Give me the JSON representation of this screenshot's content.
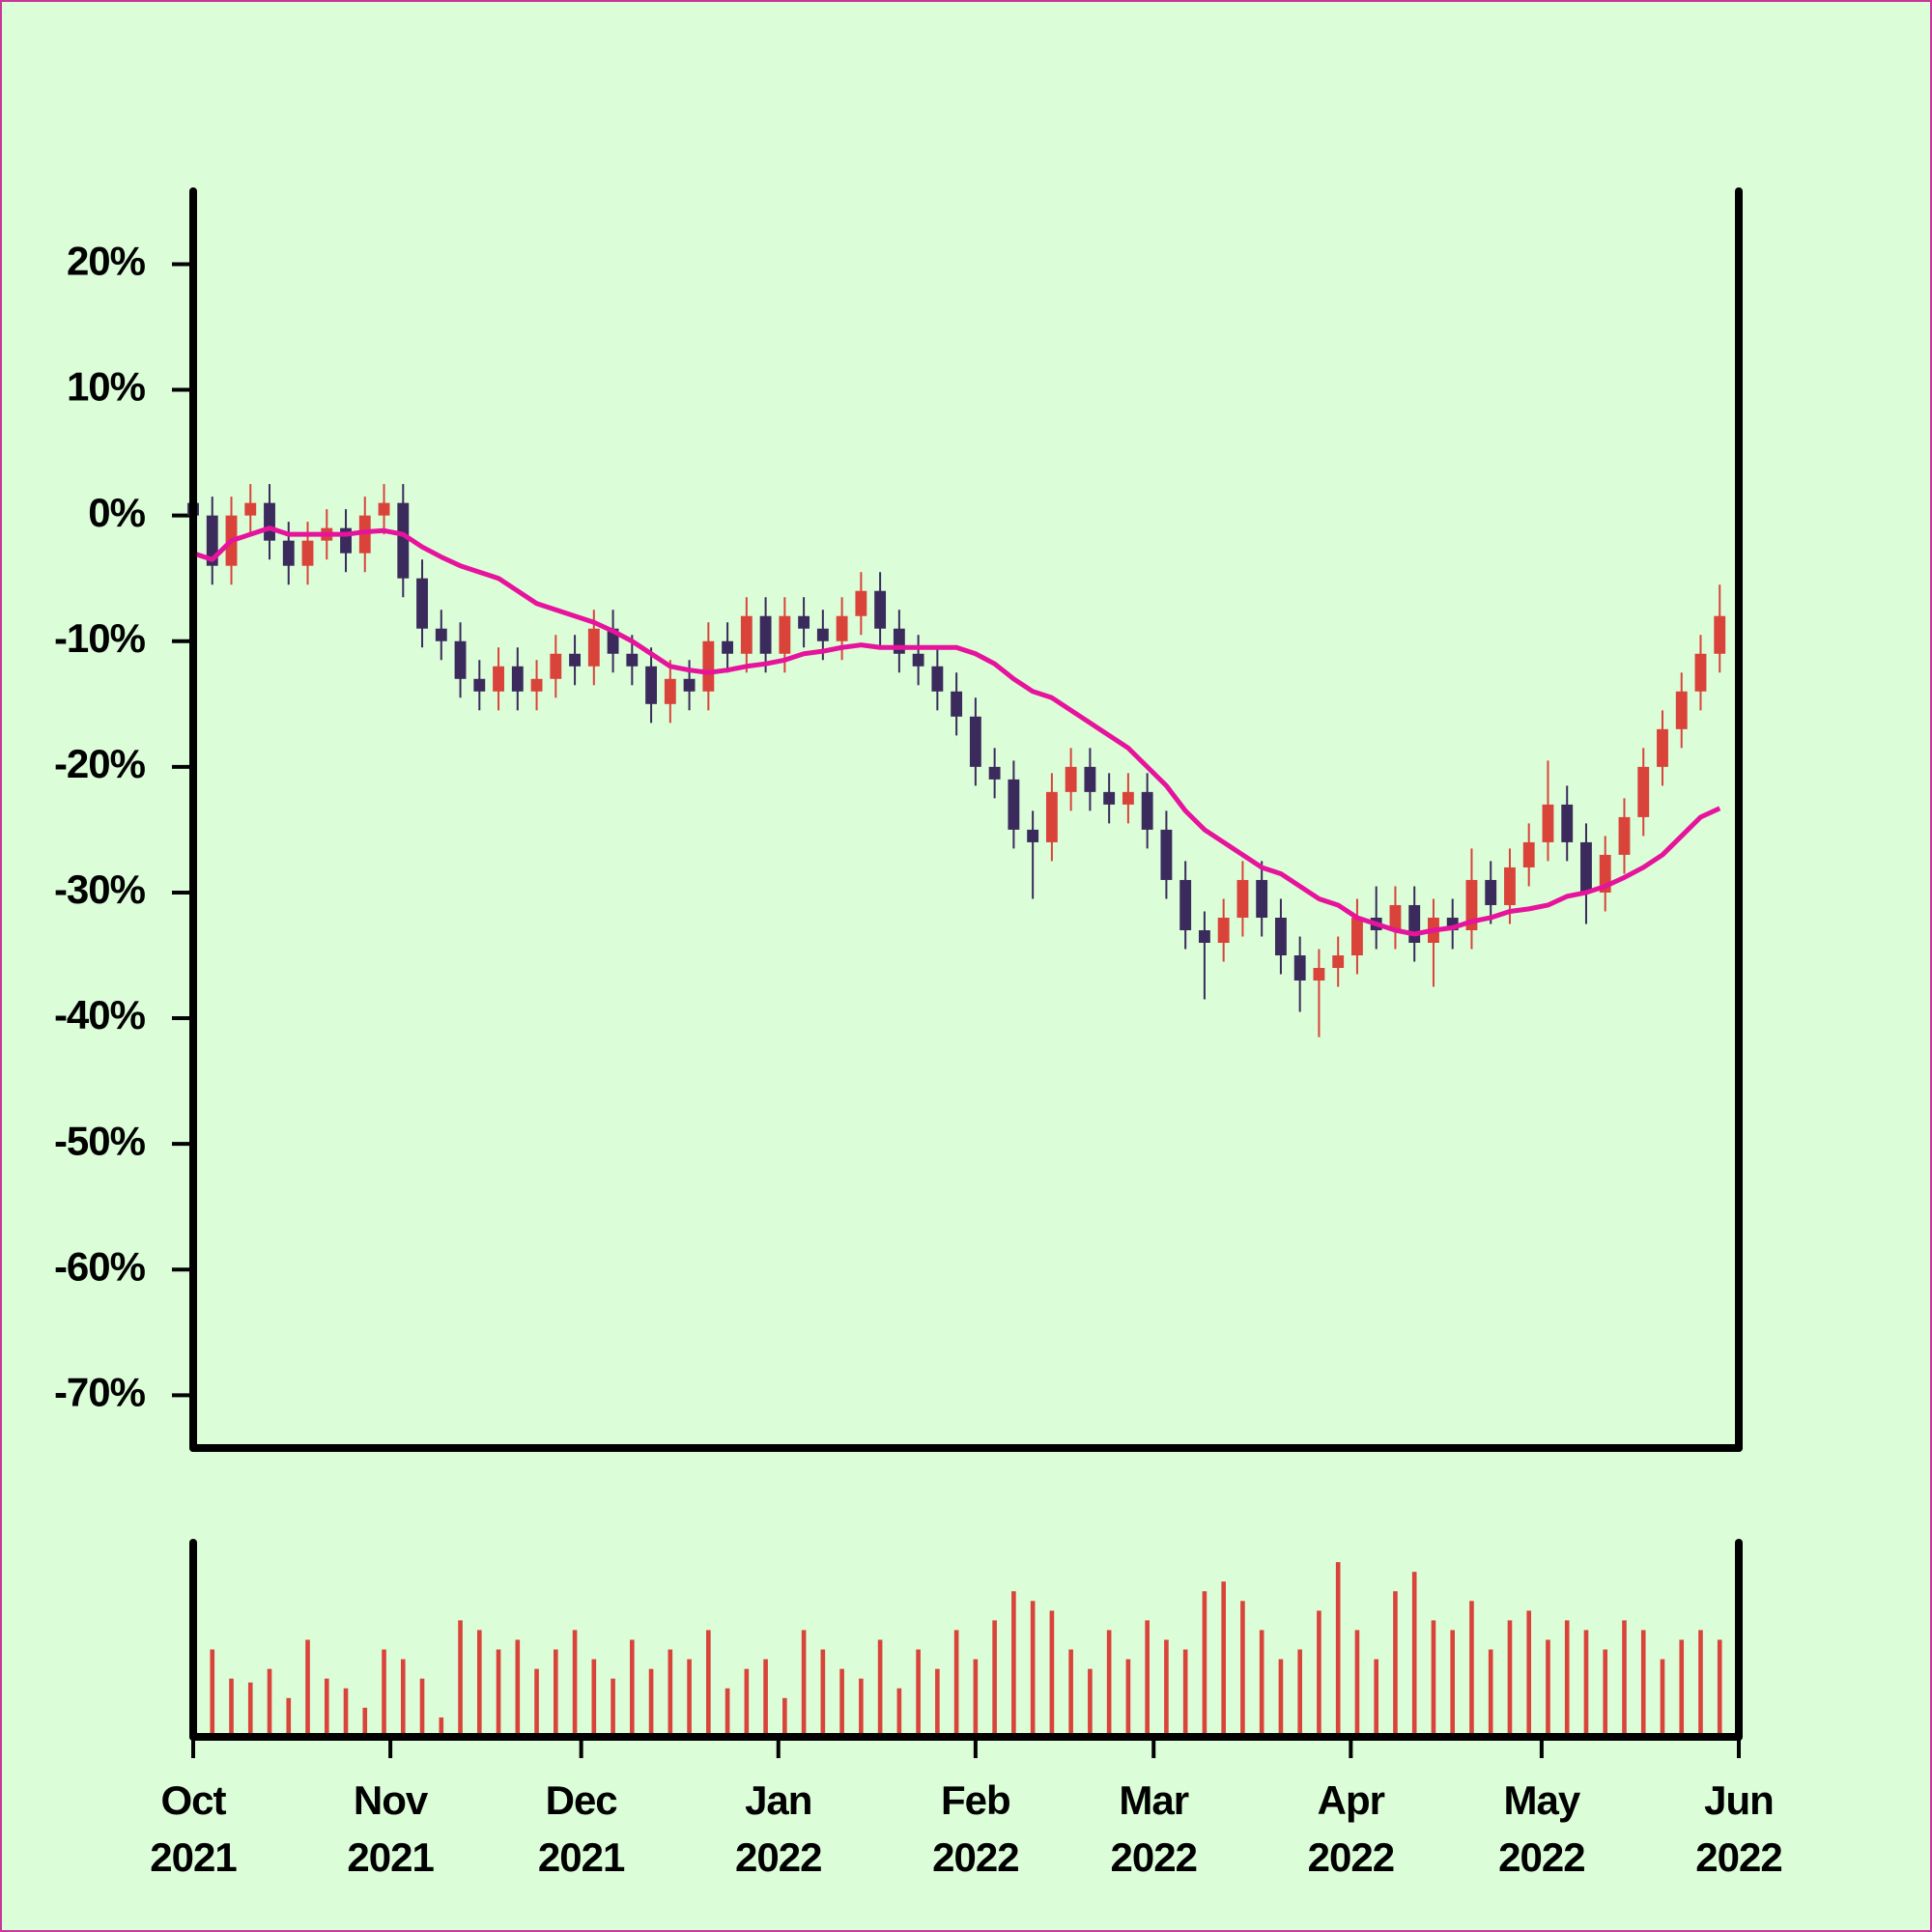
{
  "chart_data": {
    "type": "candlestick",
    "x": [
      0,
      3,
      6,
      9,
      12,
      15,
      18,
      21,
      24,
      27,
      30,
      33,
      36,
      39,
      42,
      45,
      48,
      51,
      54,
      57,
      60,
      63,
      66,
      69,
      72,
      75,
      78,
      81,
      84,
      87,
      90,
      93,
      96,
      99,
      102,
      105,
      108,
      111,
      114,
      117,
      120,
      123,
      126,
      129,
      132,
      135,
      138,
      141,
      144,
      147,
      150,
      153,
      156,
      159,
      162,
      165,
      168,
      171,
      174,
      177,
      180,
      183,
      186,
      189,
      192,
      195,
      198,
      201,
      204,
      207,
      210,
      213,
      216,
      219,
      222,
      225,
      228,
      231,
      234,
      237,
      240
    ],
    "open": [
      1,
      0,
      -4,
      0,
      1,
      -2,
      -4,
      -2,
      -1,
      -3,
      0,
      1,
      -5,
      -9,
      -10,
      -13,
      -14,
      -12,
      -14,
      -13,
      -11,
      -12,
      -9,
      -11,
      -12,
      -15,
      -13,
      -14,
      -10,
      -11,
      -8,
      -11,
      -8,
      -9,
      -10,
      -8,
      -6,
      -9,
      -11,
      -12,
      -14,
      -16,
      -20,
      -21,
      -25,
      -26,
      -22,
      -20,
      -22,
      -23,
      -22,
      -25,
      -29,
      -33,
      -34,
      -32,
      -29,
      -32,
      -35,
      -37,
      -36,
      -35,
      -32,
      -33,
      -31,
      -34,
      -32,
      -33,
      -29,
      -31,
      -28,
      -26,
      -23,
      -26,
      -30,
      -27,
      -24,
      -20,
      -17,
      -14,
      -11
    ],
    "high": [
      2.5,
      1.5,
      1.5,
      2.5,
      2.5,
      -0.5,
      -0.5,
      0.5,
      0.5,
      1.5,
      2.5,
      2.5,
      -3.5,
      -7.5,
      -8.5,
      -11.5,
      -10.5,
      -10.5,
      -11.5,
      -9.5,
      -9.5,
      -7.5,
      -7.5,
      -9.5,
      -10.5,
      -11.5,
      -11.5,
      -8.5,
      -8.5,
      -6.5,
      -6.5,
      -6.5,
      -6.5,
      -7.5,
      -6.5,
      -4.5,
      -4.5,
      -7.5,
      -9.5,
      -10.5,
      -12.5,
      -14.5,
      -18.5,
      -19.5,
      -23.5,
      -20.5,
      -18.5,
      -18.5,
      -20.5,
      -20.5,
      -20.5,
      -23.5,
      -27.5,
      -31.5,
      -30.5,
      -27.5,
      -27.5,
      -30.5,
      -33.5,
      -34.5,
      -33.5,
      -30.5,
      -29.5,
      -29.5,
      -29.5,
      -30.5,
      -30.5,
      -26.5,
      -27.5,
      -26.5,
      -24.5,
      -19.5,
      -21.5,
      -24.5,
      -25.5,
      -22.5,
      -18.5,
      -15.5,
      -12.5,
      -9.5,
      -5.5
    ],
    "low": [
      -1.5,
      -5.5,
      -5.5,
      -1.5,
      -3.5,
      -5.5,
      -5.5,
      -3.5,
      -4.5,
      -4.5,
      -1.5,
      -6.5,
      -10.5,
      -11.5,
      -14.5,
      -15.5,
      -15.5,
      -15.5,
      -15.5,
      -14.5,
      -13.5,
      -13.5,
      -12.5,
      -13.5,
      -16.5,
      -16.5,
      -15.5,
      -15.5,
      -12.5,
      -12.5,
      -12.5,
      -12.5,
      -10.5,
      -11.5,
      -11.5,
      -9.5,
      -10.5,
      -12.5,
      -13.5,
      -15.5,
      -17.5,
      -21.5,
      -22.5,
      -26.5,
      -30.5,
      -27.5,
      -23.5,
      -23.5,
      -24.5,
      -24.5,
      -26.5,
      -30.5,
      -34.5,
      -38.5,
      -35.5,
      -33.5,
      -33.5,
      -36.5,
      -39.5,
      -41.5,
      -37.5,
      -36.5,
      -34.5,
      -34.5,
      -35.5,
      -37.5,
      -34.5,
      -34.5,
      -32.5,
      -32.5,
      -29.5,
      -27.5,
      -27.5,
      -32.5,
      -31.5,
      -28.5,
      -25.5,
      -21.5,
      -18.5,
      -15.5,
      -12.5
    ],
    "close": [
      0,
      -4,
      0,
      1,
      -2,
      -4,
      -2,
      -1,
      -3,
      0,
      1,
      -5,
      -9,
      -10,
      -13,
      -14,
      -12,
      -14,
      -13,
      -11,
      -12,
      -9,
      -11,
      -12,
      -15,
      -13,
      -14,
      -10,
      -11,
      -8,
      -11,
      -8,
      -9,
      -10,
      -8,
      -6,
      -9,
      -11,
      -12,
      -14,
      -16,
      -20,
      -21,
      -25,
      -26,
      -22,
      -20,
      -22,
      -23,
      -22,
      -25,
      -29,
      -33,
      -34,
      -32,
      -29,
      -32,
      -35,
      -37,
      -36,
      -35,
      -32,
      -33,
      -31,
      -34,
      -32,
      -33,
      -29,
      -31,
      -28,
      -26,
      -23,
      -26,
      -30,
      -27,
      -24,
      -20,
      -17,
      -14,
      -11,
      -8
    ],
    "up_color": "#d9433a",
    "down_color": "#3b2a5c",
    "moving_average": {
      "color": "#e6139c",
      "values": [
        -3,
        -3.5,
        -2,
        -1.5,
        -1,
        -1.5,
        -1.5,
        -1.5,
        -1.5,
        -1.3,
        -1.2,
        -1.5,
        -2.5,
        -3.3,
        -4,
        -4.5,
        -5,
        -6,
        -7,
        -7.5,
        -8,
        -8.5,
        -9.2,
        -10,
        -11,
        -12,
        -12.3,
        -12.5,
        -12.3,
        -12,
        -11.8,
        -11.5,
        -11,
        -10.8,
        -10.5,
        -10.3,
        -10.5,
        -10.5,
        -10.5,
        -10.5,
        -10.5,
        -11,
        -11.8,
        -13,
        -14,
        -14.5,
        -15.5,
        -16.5,
        -17.5,
        -18.5,
        -20,
        -21.5,
        -23.5,
        -25,
        -26,
        -27,
        -28,
        -28.5,
        -29.5,
        -30.5,
        -31,
        -32,
        -32.5,
        -33,
        -33.3,
        -33,
        -32.8,
        -32.3,
        -32,
        -31.5,
        -31.3,
        -31,
        -30.3,
        -30,
        -29.5,
        -28.8,
        -28,
        -27,
        -25.5,
        -24,
        -23.3
      ]
    },
    "volume": {
      "color": "#d9433a",
      "ylim": [
        0,
        100
      ],
      "values": [
        50,
        45,
        30,
        28,
        35,
        20,
        50,
        30,
        25,
        15,
        45,
        40,
        30,
        10,
        60,
        55,
        45,
        50,
        35,
        45,
        55,
        40,
        30,
        50,
        35,
        45,
        40,
        55,
        25,
        35,
        40,
        20,
        55,
        45,
        35,
        30,
        50,
        25,
        45,
        35,
        55,
        40,
        60,
        75,
        70,
        65,
        45,
        35,
        55,
        40,
        60,
        50,
        45,
        75,
        80,
        70,
        55,
        40,
        45,
        65,
        90,
        55,
        40,
        75,
        85,
        60,
        55,
        70,
        45,
        60,
        65,
        50,
        60,
        55,
        45,
        60,
        55,
        40,
        50,
        55,
        50
      ]
    },
    "xlim": [
      0,
      243
    ],
    "xticks": [
      {
        "value": 0,
        "label": "Oct 2021"
      },
      {
        "value": 31,
        "label": "Nov 2021"
      },
      {
        "value": 61,
        "label": "Dec 2021"
      },
      {
        "value": 92,
        "label": "Jan 2022"
      },
      {
        "value": 123,
        "label": "Feb 2022"
      },
      {
        "value": 151,
        "label": "Mar 2022"
      },
      {
        "value": 182,
        "label": "Apr 2022"
      },
      {
        "value": 212,
        "label": "May 2022"
      },
      {
        "value": 243,
        "label": "Jun 2022"
      }
    ],
    "ylim": [
      -74.2,
      25.8
    ],
    "yticks": [
      {
        "value": 20,
        "label": "20%"
      },
      {
        "value": 10,
        "label": "10%"
      },
      {
        "value": 0,
        "label": "0%"
      },
      {
        "value": -10,
        "label": "-10%"
      },
      {
        "value": -20,
        "label": "-20%"
      },
      {
        "value": -30,
        "label": "-30%"
      },
      {
        "value": -40,
        "label": "-40%"
      },
      {
        "value": -50,
        "label": "-50%"
      },
      {
        "value": -60,
        "label": "-60%"
      },
      {
        "value": -70,
        "label": "-70%"
      }
    ]
  }
}
